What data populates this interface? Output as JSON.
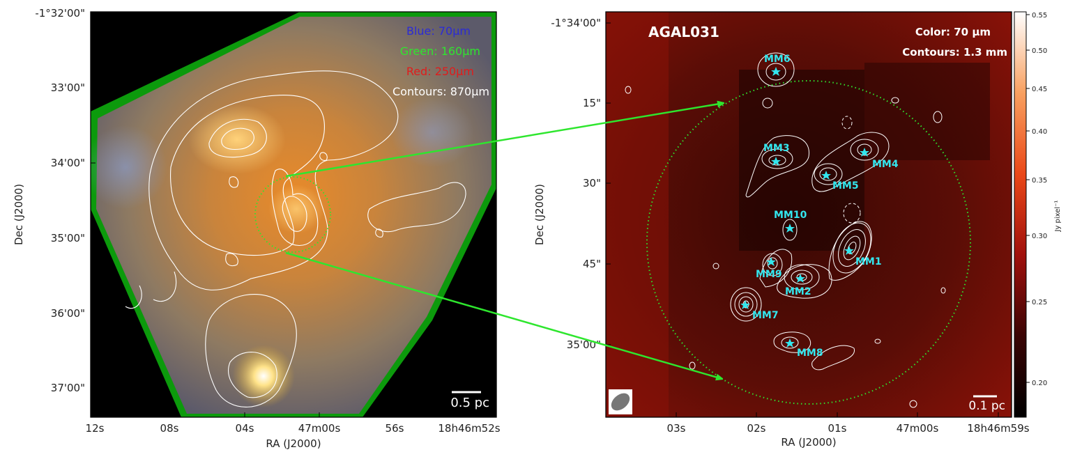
{
  "left_panel": {
    "legend": [
      {
        "text": "Blue: 70μm",
        "color": "#2b2bd6"
      },
      {
        "text": "Green: 160μm",
        "color": "#2ee62e"
      },
      {
        "text": "Red: 250μm",
        "color": "#e01c1c"
      },
      {
        "text": "Contours: 870μm",
        "color": "#ffffff"
      }
    ],
    "scalebar": "0.5 pc",
    "dec_ticks": [
      "-1°32'00\"",
      "33'00\"",
      "34'00\"",
      "35'00\"",
      "36'00\"",
      "37'00\""
    ],
    "ra_ticks": [
      "12s",
      "08s",
      "04s",
      "47m00s",
      "56s",
      "18h46m52s"
    ],
    "xlabel": "RA (J2000)",
    "ylabel": "Dec (J2000)"
  },
  "right_panel": {
    "title": "AGAL031",
    "color_text": "Color: 70 μm",
    "contours_text": "Contours: 1.3 mm",
    "scalebar": "0.1 pc",
    "dec_ticks": [
      "-1°34'00\"",
      "15\"",
      "30\"",
      "45\"",
      "35'00\""
    ],
    "ra_ticks": [
      "03s",
      "02s",
      "01s",
      "47m00s",
      "18h46m59s"
    ],
    "xlabel": "RA (J2000)",
    "ylabel": "Dec (J2000)",
    "sources": [
      "MM6",
      "MM3",
      "MM4",
      "MM5",
      "MM10",
      "MM1",
      "MM9",
      "MM2",
      "MM7",
      "MM8"
    ]
  },
  "colorbar": {
    "ticks": [
      "0.55",
      "0.50",
      "0.45",
      "0.40",
      "0.35",
      "0.30",
      "0.25",
      "0.20"
    ],
    "label": "Jy pixel⁻¹"
  }
}
